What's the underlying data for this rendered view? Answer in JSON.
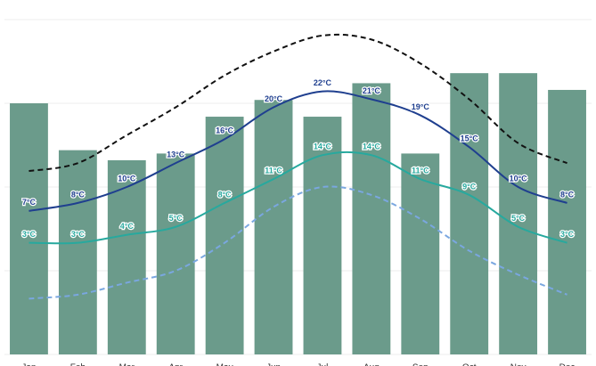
{
  "chart_data": {
    "type": "bar",
    "categories": [
      "Jan",
      "Feb",
      "Mar",
      "Apr",
      "May",
      "Jun",
      "Jul",
      "Aug",
      "Sep",
      "Oct",
      "Nov",
      "Dec"
    ],
    "values": [
      75,
      61,
      58,
      60,
      71,
      76,
      71,
      81,
      60,
      84,
      84,
      79
    ],
    "color": "#6b9b8b",
    "ylim": [
      0,
      100
    ],
    "yticks": [
      0,
      25,
      50,
      75,
      100
    ],
    "grid": true,
    "y2lim": [
      -11,
      31
    ],
    "series": [
      {
        "type": "line",
        "axis": "y2",
        "color": "#111111",
        "dashed": true,
        "values": [
          12,
          13,
          16.5,
          20,
          24,
          27,
          29,
          28.5,
          25.5,
          21,
          15.5,
          13
        ]
      },
      {
        "type": "line",
        "axis": "y2",
        "color": "#1f3f8f",
        "dashed": false,
        "values": [
          7,
          8,
          10,
          13,
          16,
          20,
          22,
          21,
          19,
          15,
          10,
          8
        ],
        "value_labels": [
          "7°C",
          "8°C",
          "10°C",
          "13°C",
          "16°C",
          "20°C",
          "22°C",
          "21°C",
          "19°C",
          "15°C",
          "10°C",
          "8°C"
        ]
      },
      {
        "type": "line",
        "axis": "y2",
        "color": "#27a99e",
        "dashed": false,
        "values": [
          3,
          3,
          4,
          5,
          8,
          11,
          14,
          14,
          11,
          9,
          5,
          3
        ],
        "value_labels": [
          "3°C",
          "3°C",
          "4°C",
          "5°C",
          "8°C",
          "11°C",
          "14°C",
          "14°C",
          "11°C",
          "9°C",
          "5°C",
          "3°C"
        ]
      },
      {
        "type": "line",
        "axis": "y2",
        "color": "#7aa7e0",
        "dashed": true,
        "values": [
          -4,
          -3.5,
          -2,
          -0.5,
          3,
          7.5,
          10,
          9,
          6,
          2,
          -1,
          -3.5
        ]
      }
    ]
  }
}
